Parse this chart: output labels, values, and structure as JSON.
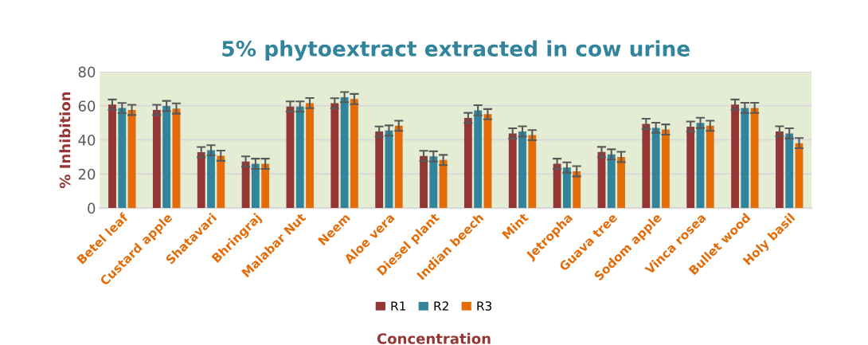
{
  "chart_data": {
    "type": "bar",
    "title": "5% phytoextract extracted in cow urine",
    "xlabel": "Concentration",
    "ylabel": "% Inhibition",
    "categories": [
      "Betel leaf",
      "Custard apple",
      "Shatavari",
      "Bhringraj",
      "Malabar Nut",
      "Neem",
      "Aloe vera",
      "Diesel plant",
      "Indian beech",
      "Mint",
      "Jetropha",
      "Guava tree",
      "Sodom apple",
      "Vinca rosea",
      "Bullet wood",
      "Holy basil"
    ],
    "series": [
      {
        "name": "R1",
        "color": "#943634",
        "values": [
          60.7,
          57.6,
          32.8,
          27.3,
          59.6,
          61.5,
          44.9,
          30.6,
          52.9,
          43.8,
          26.0,
          32.9,
          49.4,
          47.8,
          60.7,
          45.0
        ],
        "errors": [
          3,
          3,
          3,
          3,
          3,
          3,
          3,
          3,
          3,
          3,
          3,
          3,
          3,
          3,
          3,
          3
        ]
      },
      {
        "name": "R2",
        "color": "#31849b",
        "values": [
          58.7,
          59.9,
          33.9,
          26.0,
          59.6,
          65.1,
          45.5,
          30.3,
          57.4,
          45.0,
          23.8,
          31.5,
          47.1,
          50.0,
          58.8,
          43.8
        ],
        "errors": [
          3,
          3,
          3,
          3,
          3,
          3,
          3,
          3,
          3,
          3,
          3,
          3,
          3,
          3,
          3,
          3
        ]
      },
      {
        "name": "R3",
        "color": "#e36c09",
        "values": [
          57.6,
          58.4,
          30.7,
          26.0,
          61.6,
          64.0,
          48.3,
          28.2,
          55.1,
          42.8,
          21.6,
          30.0,
          46.1,
          48.3,
          58.8,
          38.1
        ],
        "errors": [
          3,
          3,
          3,
          3,
          3,
          3,
          3,
          3,
          3,
          3,
          3,
          3,
          3,
          3,
          3,
          3
        ]
      }
    ],
    "ylim": [
      0,
      80
    ],
    "yticks": [
      0,
      20,
      40,
      60,
      80
    ],
    "grid": "y",
    "legend": "bottom"
  }
}
